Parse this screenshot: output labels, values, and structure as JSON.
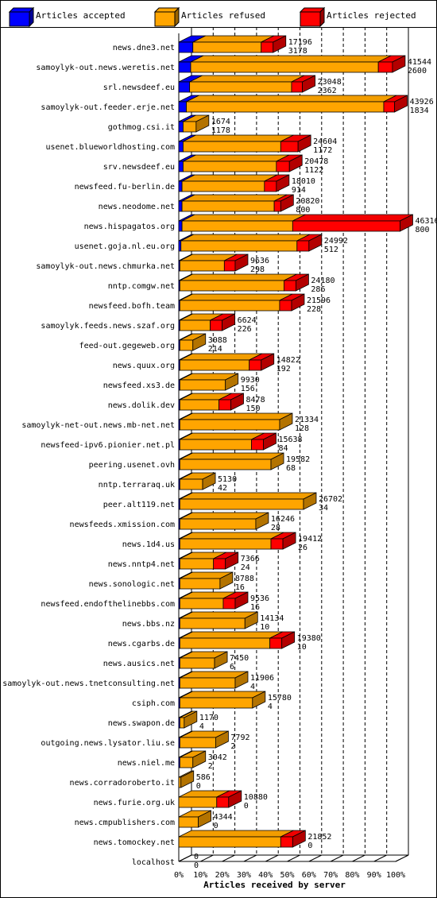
{
  "chart_data": {
    "type": "bar",
    "orientation": "horizontal",
    "stacked": true,
    "xlabel": "Articles received by server",
    "xlim": [
      0,
      100
    ],
    "x_unit": "%",
    "x_ticks": [
      "0%",
      "10%",
      "20%",
      "30%",
      "40%",
      "50%",
      "60%",
      "70%",
      "80%",
      "90%",
      "100%"
    ],
    "grid": true,
    "legend_position": "top",
    "legend": [
      {
        "label": "Articles accepted",
        "color": "#0000ff"
      },
      {
        "label": "Articles refused",
        "color": "#ffa500"
      },
      {
        "label": "Articles rejected",
        "color": "#ff0000"
      }
    ],
    "series_names": [
      "Articles accepted",
      "Articles refused",
      "Articles rejected"
    ],
    "series_colors": [
      "#0000ff",
      "#ffa500",
      "#ff0000"
    ],
    "rows": [
      {
        "server": "news.dne3.net",
        "values": [
          6.5,
          31.5,
          5.5
        ],
        "total": "17196",
        "accepted": "3178"
      },
      {
        "server": "samoylyk-out.news.weretis.net",
        "values": [
          5.5,
          86.5,
          6.5
        ],
        "total": "41544",
        "accepted": "2600"
      },
      {
        "server": "srl.newsdeef.eu",
        "values": [
          5,
          47,
          5
        ],
        "total": "23048",
        "accepted": "2362"
      },
      {
        "server": "samoylyk-out.feeder.erje.net",
        "values": [
          3.5,
          91,
          5
        ],
        "total": "43926",
        "accepted": "1834"
      },
      {
        "server": "gothmog.csi.it",
        "values": [
          2,
          6,
          0
        ],
        "total": "1674",
        "accepted": "1178"
      },
      {
        "server": "usenet.blueworldhosting.com",
        "values": [
          2,
          45,
          8
        ],
        "total": "24604",
        "accepted": "1172"
      },
      {
        "server": "srv.newsdeef.eu",
        "values": [
          2,
          43,
          6
        ],
        "total": "20478",
        "accepted": "1122"
      },
      {
        "server": "newsfeed.fu-berlin.de",
        "values": [
          1.5,
          38,
          5.5
        ],
        "total": "18010",
        "accepted": "914"
      },
      {
        "server": "news.neodome.net",
        "values": [
          1.5,
          42.5,
          3
        ],
        "total": "20820",
        "accepted": "800"
      },
      {
        "server": "news.hispagatos.org",
        "values": [
          1.5,
          51,
          49.5
        ],
        "total": "46316",
        "accepted": "800"
      },
      {
        "server": "usenet.goja.nl.eu.org",
        "values": [
          1,
          53.5,
          5.5
        ],
        "total": "24992",
        "accepted": "512"
      },
      {
        "server": "samoylyk-out.news.chmurka.net",
        "values": [
          0.5,
          20.5,
          5
        ],
        "total": "9636",
        "accepted": "298"
      },
      {
        "server": "nntp.comgw.net",
        "values": [
          0.5,
          48,
          5.5
        ],
        "total": "24180",
        "accepted": "286"
      },
      {
        "server": "newsfeed.bofh.team",
        "values": [
          0.5,
          46,
          5.5
        ],
        "total": "21596",
        "accepted": "228"
      },
      {
        "server": "samoylyk.feeds.news.szaf.org",
        "values": [
          0.5,
          14,
          5.5
        ],
        "total": "6624",
        "accepted": "226"
      },
      {
        "server": "feed-out.gegeweb.org",
        "values": [
          0.5,
          6,
          0
        ],
        "total": "3088",
        "accepted": "214"
      },
      {
        "server": "news.quux.org",
        "values": [
          0.5,
          32,
          5.5
        ],
        "total": "14822",
        "accepted": "192"
      },
      {
        "server": "newsfeed.xs3.de",
        "values": [
          0.5,
          21,
          0
        ],
        "total": "9930",
        "accepted": "156"
      },
      {
        "server": "news.dolik.dev",
        "values": [
          0.5,
          18,
          5.5
        ],
        "total": "8478",
        "accepted": "150"
      },
      {
        "server": "samoylyk-net-out.news.mb-net.net",
        "values": [
          0.5,
          46,
          0
        ],
        "total": "21334",
        "accepted": "128"
      },
      {
        "server": "newsfeed-ipv6.pionier.net.pl",
        "values": [
          0.5,
          33,
          5.5
        ],
        "total": "15638",
        "accepted": "84"
      },
      {
        "server": "peering.usenet.ovh",
        "values": [
          0.5,
          42,
          0
        ],
        "total": "19582",
        "accepted": "68"
      },
      {
        "server": "nntp.terraraq.uk",
        "values": [
          0.5,
          10.5,
          0
        ],
        "total": "5130",
        "accepted": "42"
      },
      {
        "server": "peer.alt119.net",
        "values": [
          0.5,
          57,
          0
        ],
        "total": "26702",
        "accepted": "34"
      },
      {
        "server": "newsfeeds.xmission.com",
        "values": [
          0.5,
          35,
          0
        ],
        "total": "16246",
        "accepted": "28"
      },
      {
        "server": "news.1d4.us",
        "values": [
          0.5,
          42,
          5.5
        ],
        "total": "19412",
        "accepted": "26"
      },
      {
        "server": "news.nntp4.net",
        "values": [
          0.5,
          15.5,
          5.5
        ],
        "total": "7366",
        "accepted": "24"
      },
      {
        "server": "news.sonologic.net",
        "values": [
          0.5,
          18.5,
          0
        ],
        "total": "8788",
        "accepted": "16"
      },
      {
        "server": "newsfeed.endofthelinebbs.com",
        "values": [
          0.5,
          20,
          5.5
        ],
        "total": "9536",
        "accepted": "16"
      },
      {
        "server": "news.bbs.nz",
        "values": [
          0.5,
          30,
          0
        ],
        "total": "14134",
        "accepted": "10"
      },
      {
        "server": "news.cgarbs.de",
        "values": [
          0.5,
          41.5,
          5.5
        ],
        "total": "19380",
        "accepted": "10"
      },
      {
        "server": "news.ausics.net",
        "values": [
          0.5,
          16,
          0
        ],
        "total": "7450",
        "accepted": "6"
      },
      {
        "server": "samoylyk-out.news.tnetconsulting.net",
        "values": [
          0.5,
          25.5,
          0
        ],
        "total": "11906",
        "accepted": "4"
      },
      {
        "server": "csiph.com",
        "values": [
          0.5,
          33.5,
          0
        ],
        "total": "15780",
        "accepted": "4"
      },
      {
        "server": "news.swapon.de",
        "values": [
          0.5,
          2,
          0
        ],
        "total": "1170",
        "accepted": "4"
      },
      {
        "server": "outgoing.news.lysator.liu.se",
        "values": [
          0.5,
          16.5,
          0
        ],
        "total": "7792",
        "accepted": "2"
      },
      {
        "server": "news.niel.me",
        "values": [
          0.5,
          6,
          0
        ],
        "total": "3042",
        "accepted": "2"
      },
      {
        "server": "news.corradoroberto.it",
        "values": [
          0,
          1,
          0
        ],
        "total": "586",
        "accepted": "0"
      },
      {
        "server": "news.furie.org.uk",
        "values": [
          0,
          17.5,
          5.5
        ],
        "total": "10880",
        "accepted": "0"
      },
      {
        "server": "news.cmpublishers.com",
        "values": [
          0,
          9,
          0
        ],
        "total": "4344",
        "accepted": "0"
      },
      {
        "server": "news.tomockey.net",
        "values": [
          0,
          47,
          5.5
        ],
        "total": "21852",
        "accepted": "0"
      },
      {
        "server": "localhost",
        "values": [
          0,
          0,
          0
        ],
        "total": "0",
        "accepted": "0"
      }
    ]
  }
}
